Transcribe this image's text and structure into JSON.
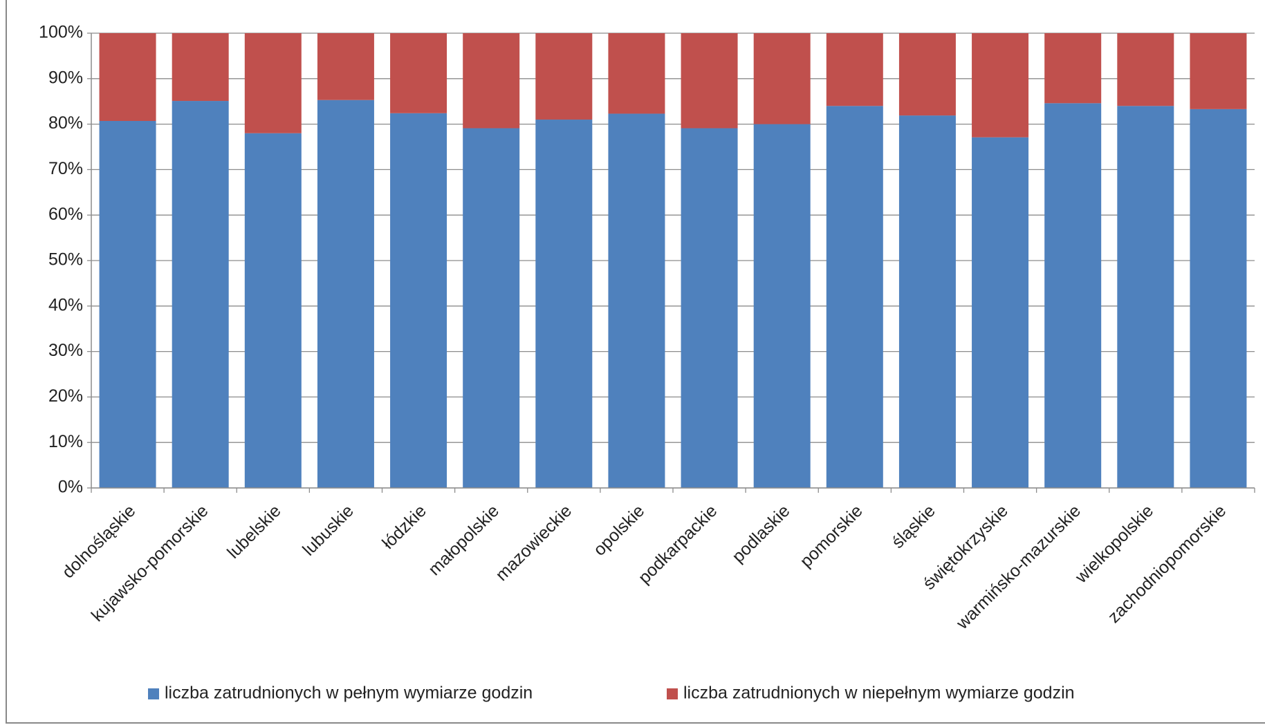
{
  "chart_data": {
    "type": "stacked_bar",
    "categories": [
      "dolnośląskie",
      "kujawsko-pomorskie",
      "lubelskie",
      "lubuskie",
      "łódzkie",
      "małopolskie",
      "mazowieckie",
      "opolskie",
      "podkarpackie",
      "podlaskie",
      "pomorskie",
      "śląskie",
      "świętokrzyskie",
      "warmińsko-mazurskie",
      "wielkopolskie",
      "zachodniopomorskie"
    ],
    "series": [
      {
        "name": "liczba zatrudnionych w pełnym wymiarze godzin",
        "color": "#4f81bd",
        "values": [
          80.7,
          85.1,
          78.0,
          85.3,
          82.4,
          79.1,
          81.0,
          82.3,
          79.1,
          80.0,
          84.0,
          81.9,
          77.1,
          84.6,
          84.0,
          83.3
        ]
      },
      {
        "name": "liczba zatrudnionych w niepełnym wymiarze godzin",
        "color": "#c0504d",
        "values": [
          19.3,
          14.9,
          22.0,
          14.7,
          17.6,
          20.9,
          19.0,
          17.7,
          20.9,
          20.0,
          16.0,
          18.1,
          22.9,
          15.4,
          16.0,
          16.7
        ]
      }
    ],
    "ylim": [
      0,
      100
    ],
    "yticks": [
      {
        "value": 0,
        "label": "0%"
      },
      {
        "value": 10,
        "label": "10%"
      },
      {
        "value": 20,
        "label": "20%"
      },
      {
        "value": 30,
        "label": "30%"
      },
      {
        "value": 40,
        "label": "40%"
      },
      {
        "value": 50,
        "label": "50%"
      },
      {
        "value": 60,
        "label": "60%"
      },
      {
        "value": 70,
        "label": "70%"
      },
      {
        "value": 80,
        "label": "80%"
      },
      {
        "value": 90,
        "label": "90%"
      },
      {
        "value": 100,
        "label": "100%"
      }
    ],
    "grid": true,
    "legend": "bottom"
  }
}
